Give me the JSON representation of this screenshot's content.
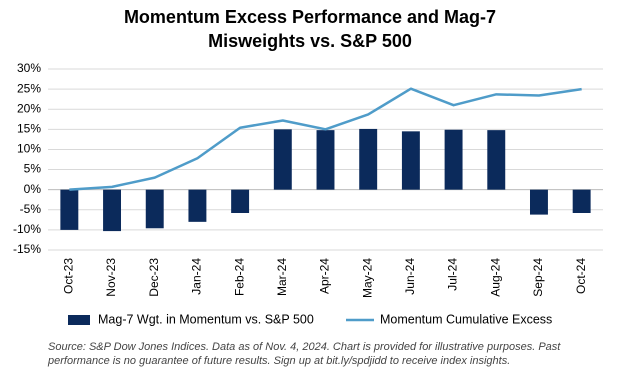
{
  "chart_data": {
    "type": "bar-line",
    "title": [
      "Momentum Excess Performance and Mag-7",
      "Misweights vs. S&P 500"
    ],
    "categories": [
      "Oct-23",
      "Nov-23",
      "Dec-23",
      "Jan-24",
      "Feb-24",
      "Mar-24",
      "Apr-24",
      "May-24",
      "Jun-24",
      "Jul-24",
      "Aug-24",
      "Sep-24",
      "Oct-24"
    ],
    "series": [
      {
        "name": "Mag-7 Wgt. in Momentum vs. S&P 500",
        "type": "bar",
        "color": "#0b2a5b",
        "values": [
          -10,
          -10.3,
          -9.6,
          -8,
          -5.8,
          15,
          14.8,
          15.1,
          14.5,
          14.9,
          14.8,
          -6.2,
          -5.8
        ]
      },
      {
        "name": "Momentum Cumulative Excess",
        "type": "line",
        "color": "#4f9cc9",
        "values": [
          0,
          0.7,
          3,
          7.8,
          15.4,
          17.2,
          15,
          18.7,
          25.1,
          21,
          23.7,
          23.4,
          25
        ]
      }
    ],
    "ylim": [
      -15,
      30
    ],
    "yticks": [
      {
        "value": -15,
        "label": "-15%"
      },
      {
        "value": -10,
        "label": "-10%"
      },
      {
        "value": -5,
        "label": "-5%"
      },
      {
        "value": 0,
        "label": "0%"
      },
      {
        "value": 5,
        "label": "5%"
      },
      {
        "value": 10,
        "label": "10%"
      },
      {
        "value": 15,
        "label": "15%"
      },
      {
        "value": 20,
        "label": "20%"
      },
      {
        "value": 25,
        "label": "25%"
      },
      {
        "value": 30,
        "label": "30%"
      }
    ],
    "grid": true,
    "legend": "bottom",
    "source": [
      "Source: S&P Dow Jones Indices.  Data as of Nov. 4, 2024. Chart is provided for illustrative purposes. Past",
      "performance is no guarantee of future results. Sign up at bit.ly/spdjidd to receive index insights."
    ]
  }
}
